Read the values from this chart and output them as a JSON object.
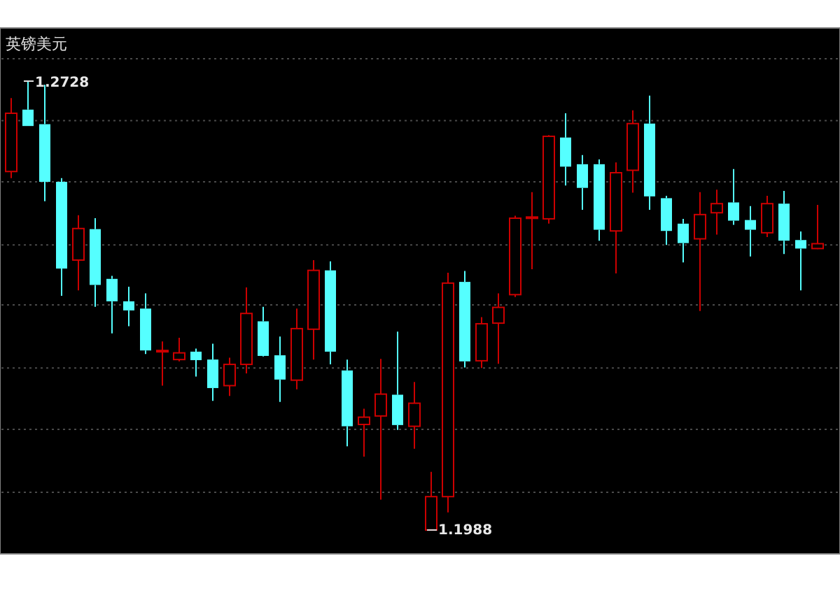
{
  "chart_data": {
    "type": "candlestick",
    "title": "英镑美元",
    "categories": [
      null,
      null,
      null,
      null,
      null,
      null,
      null,
      null,
      null,
      null,
      null,
      null,
      null,
      null,
      null,
      null,
      null,
      null,
      null,
      null,
      null,
      null,
      null,
      null,
      null,
      null,
      null,
      null,
      null,
      null,
      null,
      null,
      null,
      null,
      null,
      null,
      null,
      null,
      null,
      null,
      null,
      null,
      null,
      null,
      null,
      null,
      null,
      null,
      null
    ],
    "ohlc": [
      [
        1.2579,
        1.27,
        1.2568,
        1.2675
      ],
      [
        1.2681,
        1.2728,
        1.2654,
        1.2654
      ],
      [
        1.2657,
        1.2722,
        1.253,
        1.2562
      ],
      [
        1.2562,
        1.2568,
        1.2374,
        1.2419
      ],
      [
        1.2433,
        1.2507,
        1.2383,
        1.2485
      ],
      [
        1.2484,
        1.2502,
        1.2356,
        1.2392
      ],
      [
        1.2402,
        1.2407,
        1.2312,
        1.2365
      ],
      [
        1.2365,
        1.2389,
        1.2324,
        1.235
      ],
      [
        1.2353,
        1.2378,
        1.2278,
        1.2284
      ],
      [
        1.2283,
        1.2299,
        1.2226,
        1.2284
      ],
      [
        1.2269,
        1.2305,
        1.2266,
        1.228
      ],
      [
        1.2282,
        1.2287,
        1.2241,
        1.2268
      ],
      [
        1.2269,
        1.2295,
        1.2201,
        1.2222
      ],
      [
        1.2226,
        1.2272,
        1.2209,
        1.2261
      ],
      [
        1.2261,
        1.2388,
        1.2246,
        1.2345
      ],
      [
        1.2332,
        1.2356,
        1.2274,
        1.2275
      ],
      [
        1.2276,
        1.2307,
        1.2199,
        1.2236
      ],
      [
        1.2235,
        1.2353,
        1.222,
        1.232
      ],
      [
        1.2319,
        1.2433,
        1.2269,
        1.2416
      ],
      [
        1.2416,
        1.2431,
        1.2261,
        1.2282
      ],
      [
        1.2251,
        1.2269,
        1.2126,
        1.2159
      ],
      [
        1.2162,
        1.2188,
        1.2109,
        1.2174
      ],
      [
        1.2176,
        1.227,
        1.2038,
        1.2212
      ],
      [
        1.2211,
        1.2315,
        1.2153,
        1.2161
      ],
      [
        1.2159,
        1.2232,
        1.2122,
        1.2197
      ],
      [
        1.1988,
        1.2084,
        1.1988,
        1.2043
      ],
      [
        1.2043,
        1.2412,
        1.2017,
        1.2395
      ],
      [
        1.2397,
        1.2415,
        1.2256,
        1.2266
      ],
      [
        1.2267,
        1.2339,
        1.2255,
        1.2328
      ],
      [
        1.2329,
        1.2378,
        1.2262,
        1.2355
      ],
      [
        1.2376,
        1.2506,
        1.2372,
        1.2502
      ],
      [
        1.2502,
        1.2545,
        1.2418,
        1.2504
      ],
      [
        1.2501,
        1.2639,
        1.2493,
        1.2637
      ],
      [
        1.2635,
        1.2675,
        1.2556,
        1.2587
      ],
      [
        1.2591,
        1.2606,
        1.2516,
        1.2552
      ],
      [
        1.2591,
        1.2599,
        1.2465,
        1.2483
      ],
      [
        1.2481,
        1.2594,
        1.2411,
        1.2577
      ],
      [
        1.2581,
        1.268,
        1.2544,
        1.2658
      ],
      [
        1.2658,
        1.2704,
        1.2516,
        1.2538
      ],
      [
        1.2535,
        1.2539,
        1.2458,
        1.2481
      ],
      [
        1.2493,
        1.2501,
        1.2429,
        1.2461
      ],
      [
        1.2468,
        1.2545,
        1.2349,
        1.2508
      ],
      [
        1.2511,
        1.2549,
        1.2475,
        1.2526
      ],
      [
        1.2528,
        1.2583,
        1.2491,
        1.2498
      ],
      [
        1.2499,
        1.2522,
        1.2439,
        1.2483
      ],
      [
        1.2478,
        1.2539,
        1.2471,
        1.2526
      ],
      [
        1.2526,
        1.2547,
        1.2443,
        1.2465
      ],
      [
        1.2466,
        1.248,
        1.2383,
        1.2452
      ],
      [
        1.2452,
        1.2524,
        1.2451,
        1.246
      ]
    ],
    "colors": [
      "#cc0000",
      "#55ffff",
      "#55ffff",
      "#55ffff",
      "#cc0000",
      "#55ffff",
      "#55ffff",
      "#55ffff",
      "#55ffff",
      "#cc0000",
      "#cc0000",
      "#55ffff",
      "#55ffff",
      "#cc0000",
      "#cc0000",
      "#55ffff",
      "#55ffff",
      "#cc0000",
      "#cc0000",
      "#55ffff",
      "#55ffff",
      "#cc0000",
      "#cc0000",
      "#55ffff",
      "#cc0000",
      "#cc0000",
      "#cc0000",
      "#55ffff",
      "#cc0000",
      "#cc0000",
      "#cc0000",
      "#cc0000",
      "#cc0000",
      "#55ffff",
      "#55ffff",
      "#55ffff",
      "#cc0000",
      "#cc0000",
      "#55ffff",
      "#55ffff",
      "#55ffff",
      "#cc0000",
      "#cc0000",
      "#55ffff",
      "#55ffff",
      "#cc0000",
      "#55ffff",
      "#55ffff",
      "#cc0000"
    ],
    "ylim": [
      1.1951,
      1.2811
    ],
    "yticks": [
      {
        "value": 1.2765,
        "label": null
      },
      {
        "value": 1.2663,
        "label": null
      },
      {
        "value": 1.2562,
        "label": null
      },
      {
        "value": 1.2458,
        "label": null
      },
      {
        "value": 1.2359,
        "label": null
      },
      {
        "value": 1.2255,
        "label": null
      },
      {
        "value": 1.2154,
        "label": null
      },
      {
        "value": 1.205,
        "label": null
      }
    ],
    "grid": "y",
    "annotations": [
      "1.2728",
      "1.1988"
    ]
  }
}
